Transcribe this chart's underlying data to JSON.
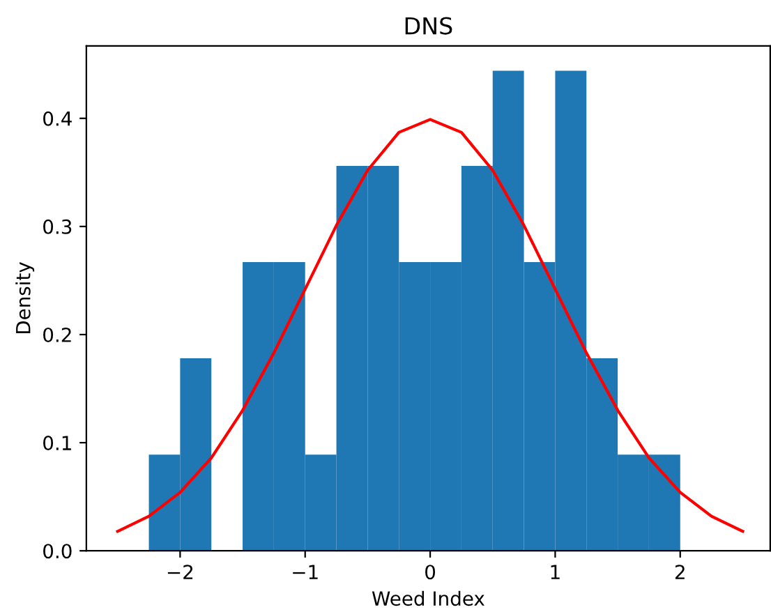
{
  "chart_data": {
    "type": "histogram",
    "title": "DNS",
    "xlabel": "Weed Index",
    "ylabel": "Density",
    "color": "#1f77b4",
    "bins": [
      -2.25,
      -2.0,
      -1.75,
      -1.5,
      -1.25,
      -1.0,
      -0.75,
      -0.5,
      -0.25,
      0,
      0.25,
      0.5,
      0.75,
      1.0,
      1.25,
      1.5,
      1.75,
      2.0
    ],
    "values": [
      0.089,
      0.178,
      0,
      0.267,
      0.267,
      0.089,
      0.356,
      0.356,
      0.267,
      0.267,
      0.356,
      0.444,
      0.267,
      0.444,
      0.178,
      0.089,
      0.089
    ],
    "series": [
      {
        "type": "line",
        "color": "#ff0000",
        "x": [
          -2.5,
          -2.25,
          -2.0,
          -1.75,
          -1.5,
          -1.25,
          -1.0,
          -0.75,
          -0.5,
          -0.25,
          0,
          0.25,
          0.5,
          0.75,
          1.0,
          1.25,
          1.5,
          1.75,
          2.0,
          2.25,
          2.5
        ],
        "values": [
          0.018,
          0.032,
          0.054,
          0.086,
          0.13,
          0.183,
          0.242,
          0.301,
          0.352,
          0.387,
          0.399,
          0.387,
          0.352,
          0.301,
          0.242,
          0.183,
          0.13,
          0.086,
          0.054,
          0.032,
          0.018
        ]
      }
    ],
    "xlim": [
      -2.75,
      2.72
    ],
    "ylim": [
      0,
      0.467
    ],
    "xticks": [
      {
        "value": -2,
        "label": "−2"
      },
      {
        "value": -1,
        "label": "−1"
      },
      0,
      1,
      2
    ],
    "yticks": [
      {
        "value": 0,
        "label": "0.0"
      },
      0.1,
      0.2,
      0.3,
      0.4
    ],
    "grid": false,
    "legend": false
  }
}
